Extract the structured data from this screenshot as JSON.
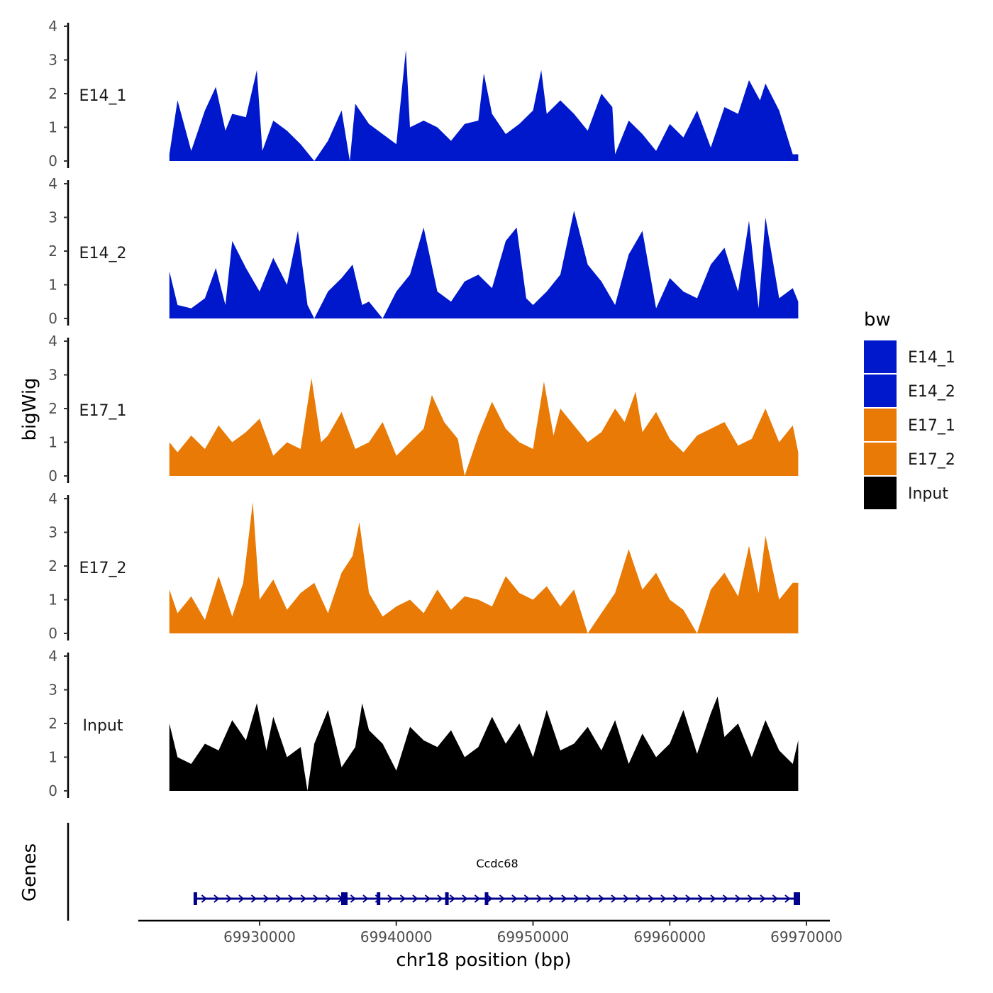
{
  "chart_data": {
    "type": "area",
    "title": "",
    "ylabel": "bigWig",
    "xlabel": "chr18 position (bp)",
    "ylim": [
      0,
      4
    ],
    "y_ticks": [
      "0",
      "1",
      "2",
      "3",
      "4"
    ],
    "xlim": [
      69921000,
      69971000
    ],
    "x_ticks": [
      {
        "value": 69930000,
        "label": "69930000"
      },
      {
        "value": 69940000,
        "label": "69940000"
      },
      {
        "value": 69950000,
        "label": "69950000"
      },
      {
        "value": 69960000,
        "label": "69960000"
      },
      {
        "value": 69970000,
        "label": "69970000"
      }
    ],
    "data_range": [
      69923400,
      69969400
    ],
    "series": [
      {
        "name": "E14_1",
        "color": "#0018CC",
        "x": [
          69923400,
          69924000,
          69925000,
          69926000,
          69926800,
          69927500,
          69928000,
          69929000,
          69929800,
          69930200,
          69931000,
          69932000,
          69933000,
          69934000,
          69935000,
          69936000,
          69936600,
          69937000,
          69938000,
          69939000,
          69940000,
          69940700,
          69941000,
          69942000,
          69943000,
          69944000,
          69945000,
          69946000,
          69946400,
          69947000,
          69948000,
          69949000,
          69950000,
          69950600,
          69951000,
          69952000,
          69953000,
          69954000,
          69955000,
          69955800,
          69956000,
          69957000,
          69958000,
          69959000,
          69960000,
          69961000,
          69962000,
          69963000,
          69964000,
          69965000,
          69965800,
          69966600,
          69967000,
          69968000,
          69969000,
          69969400
        ],
        "values": [
          0.2,
          1.8,
          0.3,
          1.5,
          2.2,
          0.9,
          1.4,
          1.3,
          2.7,
          0.3,
          1.2,
          0.9,
          0.5,
          0.0,
          0.6,
          1.5,
          0.0,
          1.7,
          1.1,
          0.8,
          0.5,
          3.3,
          1.0,
          1.2,
          1.0,
          0.6,
          1.1,
          1.2,
          2.6,
          1.4,
          0.8,
          1.1,
          1.5,
          2.7,
          1.4,
          1.8,
          1.4,
          0.9,
          2.0,
          1.6,
          0.2,
          1.2,
          0.8,
          0.3,
          1.1,
          0.7,
          1.5,
          0.4,
          1.6,
          1.4,
          2.4,
          1.8,
          2.3,
          1.5,
          0.2,
          0.2
        ]
      },
      {
        "name": "E14_2",
        "color": "#0018CC",
        "x": [
          69923400,
          69924000,
          69925000,
          69926000,
          69926800,
          69927500,
          69928000,
          69929000,
          69930000,
          69931000,
          69932000,
          69932800,
          69933500,
          69934000,
          69935000,
          69936000,
          69936800,
          69937500,
          69938000,
          69939000,
          69940000,
          69941000,
          69942000,
          69943000,
          69944000,
          69945000,
          69946000,
          69947000,
          69948000,
          69948800,
          69949500,
          69950000,
          69951000,
          69952000,
          69953000,
          69954000,
          69955000,
          69956000,
          69957000,
          69958000,
          69959000,
          69960000,
          69961000,
          69962000,
          69963000,
          69964000,
          69965000,
          69965800,
          69966500,
          69967000,
          69968000,
          69969000,
          69969400
        ],
        "values": [
          1.4,
          0.4,
          0.3,
          0.6,
          1.5,
          0.4,
          2.3,
          1.5,
          0.8,
          1.8,
          1.0,
          2.6,
          0.4,
          0.0,
          0.8,
          1.2,
          1.6,
          0.4,
          0.5,
          0.0,
          0.8,
          1.3,
          2.7,
          0.8,
          0.5,
          1.1,
          1.3,
          0.9,
          2.3,
          2.7,
          0.6,
          0.4,
          0.8,
          1.3,
          3.2,
          1.6,
          1.1,
          0.4,
          1.9,
          2.6,
          0.3,
          1.2,
          0.8,
          0.6,
          1.6,
          2.1,
          0.8,
          2.9,
          0.3,
          3.0,
          0.6,
          0.9,
          0.5
        ]
      },
      {
        "name": "E17_1",
        "color": "#E87A05",
        "x": [
          69923400,
          69924000,
          69925000,
          69926000,
          69927000,
          69928000,
          69929000,
          69930000,
          69931000,
          69932000,
          69933000,
          69933800,
          69934500,
          69935000,
          69936000,
          69937000,
          69938000,
          69939000,
          69940000,
          69941000,
          69942000,
          69942600,
          69943500,
          69944500,
          69945000,
          69946000,
          69947000,
          69948000,
          69949000,
          69950000,
          69950800,
          69951500,
          69952000,
          69953000,
          69954000,
          69955000,
          69956000,
          69956700,
          69957500,
          69958000,
          69959000,
          69960000,
          69961000,
          69962000,
          69963000,
          69964000,
          69965000,
          69966000,
          69967000,
          69968000,
          69969000,
          69969400
        ],
        "values": [
          1.0,
          0.7,
          1.2,
          0.8,
          1.5,
          1.0,
          1.3,
          1.7,
          0.6,
          1.0,
          0.8,
          2.9,
          1.0,
          1.2,
          1.9,
          0.8,
          1.0,
          1.6,
          0.6,
          1.0,
          1.4,
          2.4,
          1.6,
          1.1,
          0.0,
          1.2,
          2.2,
          1.4,
          1.0,
          0.8,
          2.8,
          1.2,
          2.0,
          1.5,
          1.0,
          1.3,
          2.0,
          1.6,
          2.5,
          1.3,
          1.9,
          1.1,
          0.7,
          1.2,
          1.4,
          1.6,
          0.9,
          1.1,
          2.0,
          1.0,
          1.5,
          0.7
        ]
      },
      {
        "name": "E17_2",
        "color": "#E87A05",
        "x": [
          69923400,
          69924000,
          69925000,
          69926000,
          69927000,
          69928000,
          69928800,
          69929500,
          69930000,
          69931000,
          69932000,
          69933000,
          69934000,
          69935000,
          69936000,
          69936800,
          69937300,
          69938000,
          69939000,
          69940000,
          69941000,
          69942000,
          69943000,
          69944000,
          69945000,
          69946000,
          69947000,
          69948000,
          69949000,
          69950000,
          69951000,
          69952000,
          69953000,
          69954000,
          69955000,
          69956000,
          69957000,
          69958000,
          69959000,
          69960000,
          69961000,
          69962000,
          69963000,
          69964000,
          69965000,
          69965800,
          69966500,
          69967000,
          69968000,
          69969000,
          69969400
        ],
        "values": [
          1.3,
          0.6,
          1.1,
          0.4,
          1.7,
          0.5,
          1.5,
          3.9,
          1.0,
          1.6,
          0.7,
          1.2,
          1.5,
          0.6,
          1.8,
          2.3,
          3.3,
          1.2,
          0.5,
          0.8,
          1.0,
          0.6,
          1.3,
          0.7,
          1.1,
          1.0,
          0.8,
          1.7,
          1.2,
          1.0,
          1.4,
          0.8,
          1.3,
          0.0,
          0.6,
          1.2,
          2.5,
          1.3,
          1.8,
          1.0,
          0.7,
          0.0,
          1.3,
          1.8,
          1.1,
          2.6,
          1.2,
          2.9,
          1.0,
          1.5,
          1.5
        ]
      },
      {
        "name": "Input",
        "color": "#000000",
        "x": [
          69923400,
          69924000,
          69925000,
          69926000,
          69927000,
          69928000,
          69929000,
          69929800,
          69930500,
          69931000,
          69932000,
          69933000,
          69933500,
          69934000,
          69935000,
          69936000,
          69937000,
          69937500,
          69938000,
          69939000,
          69940000,
          69941000,
          69942000,
          69943000,
          69944000,
          69945000,
          69946000,
          69947000,
          69948000,
          69949000,
          69950000,
          69951000,
          69952000,
          69953000,
          69954000,
          69955000,
          69956000,
          69957000,
          69958000,
          69959000,
          69960000,
          69961000,
          69962000,
          69963000,
          69963500,
          69964000,
          69965000,
          69966000,
          69967000,
          69968000,
          69969000,
          69969400
        ],
        "values": [
          2.0,
          1.0,
          0.8,
          1.4,
          1.2,
          2.1,
          1.5,
          2.6,
          1.2,
          2.2,
          1.0,
          1.3,
          0.0,
          1.4,
          2.4,
          0.7,
          1.3,
          2.6,
          1.8,
          1.4,
          0.6,
          1.9,
          1.5,
          1.3,
          1.8,
          1.0,
          1.3,
          2.2,
          1.4,
          2.0,
          1.0,
          2.4,
          1.2,
          1.4,
          1.9,
          1.2,
          2.1,
          0.8,
          1.7,
          1.0,
          1.4,
          2.4,
          1.1,
          2.3,
          2.8,
          1.6,
          2.0,
          1.0,
          2.1,
          1.2,
          0.8,
          1.5
        ]
      }
    ],
    "legend": {
      "title": "bw",
      "position": "right"
    },
    "gene_track": {
      "ylabel": "Genes",
      "gene": "Ccdc68",
      "start": 69925300,
      "end": 69969400,
      "strand": "+",
      "exons": [
        69925300,
        69936200,
        69938700,
        69943700,
        69946600,
        69969300
      ]
    }
  }
}
